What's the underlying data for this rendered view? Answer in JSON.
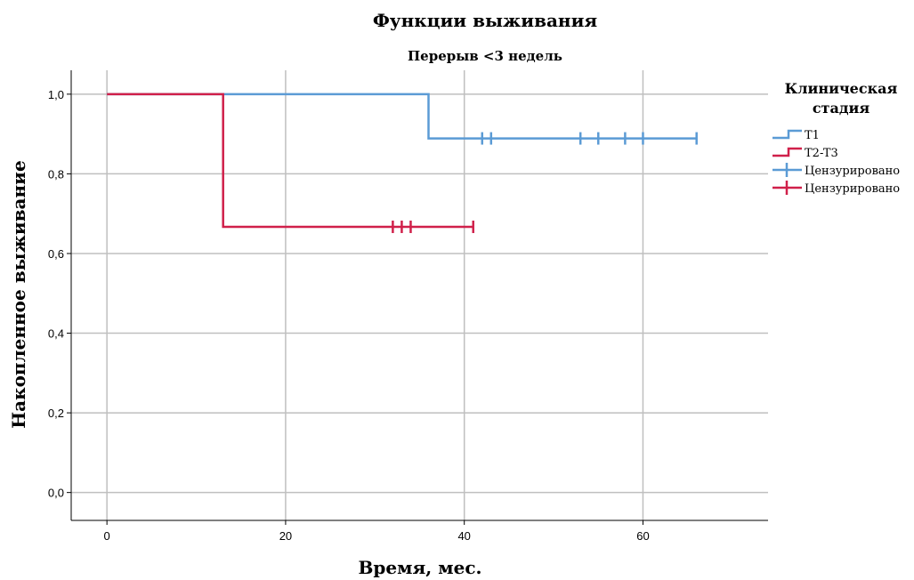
{
  "chart_data": {
    "type": "line",
    "title": "Функции выживания",
    "subtitle": "Перерыв <3 недель",
    "xlabel": "Время, мес.",
    "ylabel": "Накопленное выживание",
    "xlim": [
      -4,
      74
    ],
    "ylim": [
      -0.07,
      1.06
    ],
    "x_ticks": [
      0,
      20,
      40,
      60
    ],
    "x_tick_labels": [
      "0",
      "20",
      "40",
      "60"
    ],
    "y_ticks": [
      0.0,
      0.2,
      0.4,
      0.6,
      0.8,
      1.0
    ],
    "y_tick_labels": [
      "0,0",
      "0,2",
      "0,4",
      "0,6",
      "0,8",
      "1,0"
    ],
    "grid": true,
    "legend_position": "right",
    "legend_title": "Клиническая стадия",
    "legend_title_lines": [
      "Клиническая",
      "стадия"
    ],
    "series": [
      {
        "name": "T1",
        "color": "#5b9bd5",
        "steps": [
          [
            0,
            1.0
          ],
          [
            36,
            1.0
          ],
          [
            36,
            0.889
          ],
          [
            66,
            0.889
          ]
        ],
        "censored_name": "Цензурировано",
        "censored": [
          [
            42,
            0.889
          ],
          [
            43,
            0.889
          ],
          [
            53,
            0.889
          ],
          [
            55,
            0.889
          ],
          [
            58,
            0.889
          ],
          [
            60,
            0.889
          ],
          [
            66,
            0.889
          ]
        ]
      },
      {
        "name": "T2-T3",
        "color": "#d0204a",
        "steps": [
          [
            0,
            1.0
          ],
          [
            13,
            1.0
          ],
          [
            13,
            0.667
          ],
          [
            41,
            0.667
          ]
        ],
        "censored_name": "Цензурировано",
        "censored": [
          [
            32,
            0.667
          ],
          [
            33,
            0.667
          ],
          [
            34,
            0.667
          ],
          [
            41,
            0.667
          ]
        ]
      }
    ]
  }
}
